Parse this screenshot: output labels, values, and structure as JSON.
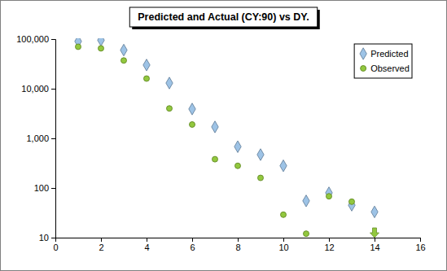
{
  "chart_data": {
    "type": "scatter",
    "title": "Predicted and Actual (CY:90) vs DY.",
    "x": [
      1,
      2,
      3,
      4,
      5,
      6,
      7,
      8,
      9,
      10,
      11,
      12,
      13,
      14
    ],
    "series": [
      {
        "name": "Predicted",
        "color": "#9dc3e6",
        "marker": "diamond",
        "values": [
          90000,
          95000,
          60000,
          30000,
          13000,
          3900,
          1700,
          680,
          470,
          280,
          55,
          80,
          45,
          33
        ]
      },
      {
        "name": "Observed",
        "color": "#92c83e",
        "marker": "circle",
        "values": [
          70000,
          65000,
          37000,
          16000,
          4000,
          1900,
          380,
          280,
          160,
          29,
          12,
          68,
          53,
          null
        ]
      }
    ],
    "xlim": [
      0,
      16
    ],
    "xticks": [
      0,
      2,
      4,
      6,
      8,
      10,
      12,
      14,
      16
    ],
    "ylim": [
      10,
      100000
    ],
    "yticks": [
      10,
      100,
      {
        "value": 1000,
        "label": "1,000"
      },
      {
        "value": 10000,
        "label": "10,000"
      },
      {
        "value": 100000,
        "label": "100,000"
      }
    ],
    "log": "y",
    "grid": false,
    "legend": "top-right"
  }
}
